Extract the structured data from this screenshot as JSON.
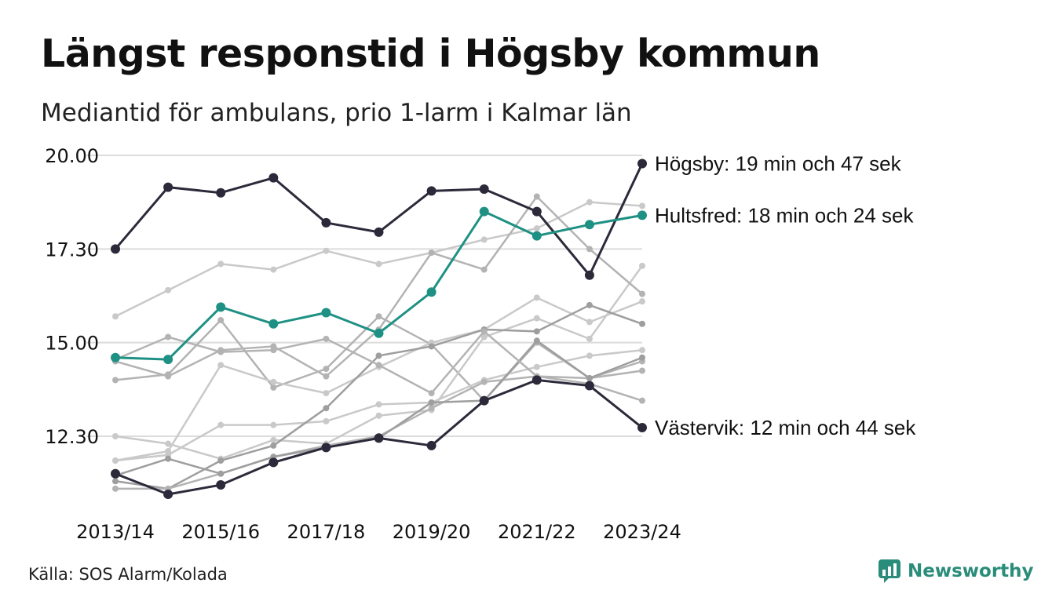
{
  "title": "Längst responstid i Högsby kommun",
  "subtitle": "Mediantid för ambulans, prio 1-larm i Kalmar län",
  "source": "Källa: SOS Alarm/Kolada",
  "brand": "Newsworthy",
  "colors": {
    "highlight_dark": "#2c2a3a",
    "highlight_teal": "#1f9184",
    "background_lines": [
      "#c9c9c9",
      "#b3b3b3",
      "#9e9e9e"
    ],
    "brand": "#2a8c7a",
    "grid": "#dcdcdc"
  },
  "chart_data": {
    "type": "line",
    "x": [
      "2013/14",
      "2014/15",
      "2015/16",
      "2016/17",
      "2017/18",
      "2018/19",
      "2019/20",
      "2020/21",
      "2021/22",
      "2022/23",
      "2023/24"
    ],
    "xticks": [
      "2013/14",
      "2015/16",
      "2017/18",
      "2019/20",
      "2021/22",
      "2023/24"
    ],
    "yticks": [
      "12.30",
      "15.00",
      "17.30",
      "20.00"
    ],
    "yticks_value": [
      12.5,
      15.0,
      17.5,
      20.0
    ],
    "ylim": [
      10.4,
      20.0
    ],
    "grid": true,
    "highlighted": [
      {
        "name": "Högsby",
        "label": "Högsby: 19 min och 47 sek",
        "color": "#2c2a3a",
        "values": [
          17.5,
          19.15,
          19.0,
          19.4,
          18.2,
          17.95,
          19.05,
          19.1,
          18.5,
          16.8,
          19.78
        ]
      },
      {
        "name": "Hultsfred",
        "label": "Hultsfred: 18 min och 24 sek",
        "color": "#1f9184",
        "values": [
          14.6,
          14.55,
          15.95,
          15.5,
          15.8,
          15.25,
          16.35,
          18.5,
          17.85,
          18.15,
          18.4
        ]
      },
      {
        "name": "Västervik",
        "label": "Västervik: 12 min och 44 sek",
        "color": "#2c2a3a",
        "values": [
          11.5,
          10.95,
          11.2,
          11.8,
          12.2,
          12.45,
          12.25,
          13.45,
          14.0,
          13.85,
          12.73
        ]
      }
    ],
    "background": [
      {
        "color": "#c9c9c9",
        "values": [
          15.7,
          16.4,
          17.1,
          16.95,
          17.45,
          17.1,
          17.4,
          17.75,
          18.05,
          18.75,
          18.65
        ]
      },
      {
        "color": "#b3b3b3",
        "values": [
          14.0,
          14.15,
          15.6,
          13.8,
          14.3,
          15.7,
          14.95,
          13.45,
          15.0,
          14.05,
          14.5
        ]
      },
      {
        "color": "#c9c9c9",
        "values": [
          11.85,
          12.1,
          14.4,
          13.95,
          13.65,
          14.35,
          15.0,
          15.35,
          16.2,
          15.55,
          16.1
        ]
      },
      {
        "color": "#c9c9c9",
        "values": [
          12.5,
          12.3,
          11.9,
          12.4,
          12.3,
          13.05,
          13.2,
          15.15,
          15.65,
          15.1,
          17.05
        ]
      },
      {
        "color": "#c9c9c9",
        "values": [
          11.85,
          12.0,
          12.8,
          12.8,
          12.9,
          13.35,
          13.4,
          14.0,
          14.35,
          14.65,
          14.8
        ]
      },
      {
        "color": "#b3b3b3",
        "values": [
          14.5,
          14.1,
          14.8,
          14.9,
          14.1,
          15.35,
          17.4,
          16.95,
          18.9,
          17.5,
          16.3
        ]
      },
      {
        "color": "#9e9e9e",
        "values": [
          11.3,
          11.1,
          11.85,
          12.25,
          13.25,
          14.65,
          14.9,
          15.35,
          15.3,
          16.0,
          15.5
        ]
      },
      {
        "color": "#b3b3b3",
        "values": [
          11.1,
          11.1,
          11.5,
          11.95,
          12.25,
          12.5,
          13.25,
          13.95,
          14.1,
          14.05,
          14.25
        ]
      },
      {
        "color": "#9e9e9e",
        "values": [
          11.45,
          11.9,
          11.5,
          11.95,
          12.2,
          12.45,
          13.4,
          13.45,
          15.05,
          14.05,
          14.6
        ]
      },
      {
        "color": "#b3b3b3",
        "values": [
          14.55,
          15.15,
          14.75,
          14.8,
          15.1,
          14.4,
          13.65,
          15.3,
          14.1,
          13.9,
          13.45
        ]
      }
    ]
  }
}
